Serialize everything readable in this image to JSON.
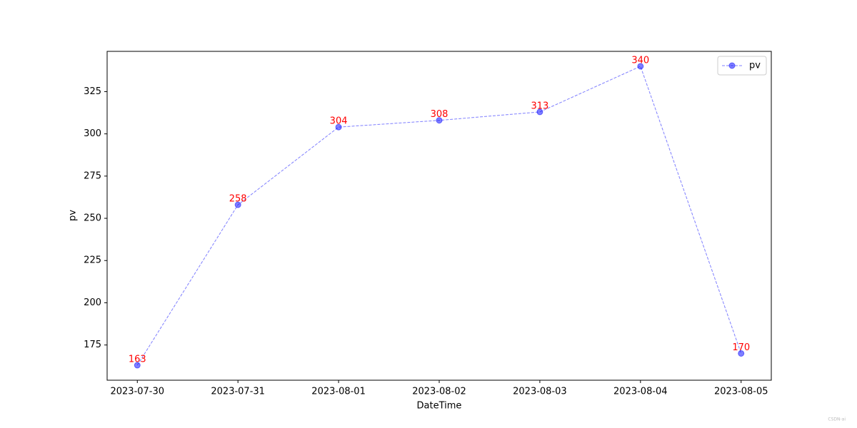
{
  "chart_data": {
    "type": "line",
    "x_label": "DateTime",
    "y_label": "pv",
    "categories": [
      "2023-07-30",
      "2023-07-31",
      "2023-08-01",
      "2023-08-02",
      "2023-08-03",
      "2023-08-04",
      "2023-08-05"
    ],
    "series": [
      {
        "name": "pv",
        "color": "#0000ff",
        "values": [
          163,
          258,
          304,
          308,
          313,
          340,
          170
        ]
      }
    ],
    "ylim": [
      154.15,
      348.85
    ],
    "yticks": [
      175,
      200,
      225,
      250,
      275,
      300,
      325
    ],
    "legend": "upper right",
    "data_labels": true,
    "label_color": "#ff0000",
    "line_style": "dashed",
    "watermark": "CSDN-ai"
  }
}
